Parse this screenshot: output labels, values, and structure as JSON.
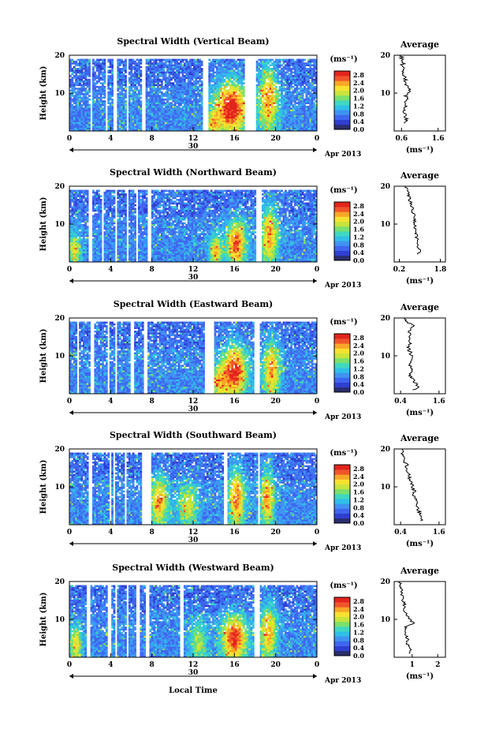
{
  "chart_data": {
    "type": "heatmap",
    "date_label": "30",
    "date_suffix": "Apr 2013",
    "xlabel": "Local Time",
    "x_ticks": [
      "0",
      "4",
      "8",
      "12",
      "16",
      "20",
      "0"
    ],
    "xlim": [
      0,
      24
    ],
    "colorbar": {
      "unit": "(ms⁻¹)",
      "ticks": [
        "0.0",
        "0.4",
        "0.8",
        "1.2",
        "1.6",
        "2.0",
        "2.4",
        "2.8"
      ],
      "range": [
        0.0,
        3.0
      ],
      "colors": [
        "#2a2d6e",
        "#2f3fd2",
        "#3f66f0",
        "#3f93f3",
        "#2fbfe8",
        "#3fd8c0",
        "#7be06a",
        "#c9e43b",
        "#f7e22e",
        "#f8a726",
        "#f2542a",
        "#e3241c"
      ]
    },
    "panels": [
      {
        "title": "Spectral Width (Vertical Beam)",
        "ylabel": "Height (km)",
        "y_ticks": [
          "20",
          "10"
        ],
        "ylim": [
          0,
          20
        ],
        "avg": {
          "title": "Average",
          "x_ticks": [
            "0.6",
            "1.6"
          ],
          "xlim": [
            0.4,
            1.8
          ],
          "xlabel": "(ms⁻¹)",
          "y_ticks": [
            "20",
            "10"
          ],
          "profile": [
            [
              0.7,
              2
            ],
            [
              0.75,
              3
            ],
            [
              0.72,
              4
            ],
            [
              0.66,
              5
            ],
            [
              0.72,
              6
            ],
            [
              0.7,
              7
            ],
            [
              0.74,
              8
            ],
            [
              0.71,
              9
            ],
            [
              0.78,
              10
            ],
            [
              0.82,
              11
            ],
            [
              0.76,
              12
            ],
            [
              0.72,
              13
            ],
            [
              0.68,
              14
            ],
            [
              0.62,
              15
            ],
            [
              0.66,
              16
            ],
            [
              0.6,
              17
            ],
            [
              0.64,
              18
            ],
            [
              0.62,
              19
            ],
            [
              0.58,
              20
            ]
          ]
        }
      },
      {
        "title": "Spectral Width (Northward Beam)",
        "ylabel": "Height (km)",
        "y_ticks": [
          "20",
          "10"
        ],
        "ylim": [
          0,
          20
        ],
        "avg": {
          "title": "Average",
          "x_ticks": [
            "0.2",
            "1.8"
          ],
          "xlim": [
            0.0,
            2.0
          ],
          "xlabel": "(ms⁻¹)",
          "y_ticks": [
            "20",
            "10"
          ],
          "profile": [
            [
              0.95,
              2
            ],
            [
              1.0,
              3
            ],
            [
              0.92,
              4
            ],
            [
              0.88,
              5
            ],
            [
              0.9,
              6
            ],
            [
              0.85,
              7
            ],
            [
              0.88,
              8
            ],
            [
              0.82,
              9
            ],
            [
              0.8,
              10
            ],
            [
              0.78,
              11
            ],
            [
              0.82,
              12
            ],
            [
              0.75,
              13
            ],
            [
              0.7,
              14
            ],
            [
              0.68,
              15
            ],
            [
              0.62,
              16
            ],
            [
              0.58,
              17
            ],
            [
              0.55,
              18
            ],
            [
              0.5,
              19
            ],
            [
              0.45,
              20
            ]
          ]
        }
      },
      {
        "title": "Spectral Width (Eastward Beam)",
        "ylabel": "Height (km)",
        "y_ticks": [
          "20",
          "10"
        ],
        "ylim": [
          0,
          20
        ],
        "avg": {
          "title": "Average",
          "x_ticks": [
            "0.4",
            "1.6"
          ],
          "xlim": [
            0.2,
            1.8
          ],
          "xlabel": "(ms⁻¹)",
          "y_ticks": [
            "20",
            "10"
          ],
          "profile": [
            [
              0.8,
              1
            ],
            [
              0.95,
              2
            ],
            [
              0.85,
              3
            ],
            [
              0.75,
              4
            ],
            [
              0.7,
              5
            ],
            [
              0.78,
              6
            ],
            [
              0.68,
              7
            ],
            [
              0.72,
              8
            ],
            [
              0.8,
              9
            ],
            [
              0.74,
              10
            ],
            [
              0.7,
              11
            ],
            [
              0.64,
              12
            ],
            [
              0.7,
              13
            ],
            [
              0.62,
              14
            ],
            [
              0.68,
              15
            ],
            [
              0.66,
              16
            ],
            [
              0.72,
              17
            ],
            [
              0.8,
              18
            ],
            [
              0.6,
              19
            ],
            [
              0.55,
              20
            ]
          ]
        }
      },
      {
        "title": "Spectral Width (Southward Beam)",
        "ylabel": "Height (km)",
        "y_ticks": [
          "20",
          "10"
        ],
        "ylim": [
          0,
          20
        ],
        "avg": {
          "title": "Average",
          "x_ticks": [
            "0.4",
            "1.6"
          ],
          "xlim": [
            0.2,
            1.8
          ],
          "xlabel": "(ms⁻¹)",
          "y_ticks": [
            "20",
            "10"
          ],
          "profile": [
            [
              1.05,
              1
            ],
            [
              1.1,
              2
            ],
            [
              1.0,
              3
            ],
            [
              0.95,
              4
            ],
            [
              0.9,
              5
            ],
            [
              0.88,
              6
            ],
            [
              0.85,
              7
            ],
            [
              0.8,
              8
            ],
            [
              0.82,
              9
            ],
            [
              0.76,
              10
            ],
            [
              0.74,
              11
            ],
            [
              0.7,
              12
            ],
            [
              0.66,
              13
            ],
            [
              0.62,
              14
            ],
            [
              0.6,
              15
            ],
            [
              0.58,
              16
            ],
            [
              0.5,
              17
            ],
            [
              0.48,
              18
            ],
            [
              0.46,
              19
            ],
            [
              0.44,
              20
            ]
          ]
        }
      },
      {
        "title": "Spectral Width (Westward Beam)",
        "ylabel": "Height (km)",
        "y_ticks": [
          "20",
          "10"
        ],
        "ylim": [
          0,
          20
        ],
        "avg": {
          "title": "Average",
          "x_ticks": [
            "1",
            "2"
          ],
          "xlim": [
            0.3,
            2.3
          ],
          "xlabel": "(ms⁻¹)",
          "y_ticks": [
            "20",
            "10"
          ],
          "profile": [
            [
              0.9,
              1
            ],
            [
              0.95,
              2
            ],
            [
              0.85,
              3
            ],
            [
              0.8,
              4
            ],
            [
              0.82,
              5
            ],
            [
              0.75,
              6
            ],
            [
              0.78,
              7
            ],
            [
              0.72,
              8
            ],
            [
              1.05,
              9
            ],
            [
              0.9,
              10
            ],
            [
              0.8,
              11
            ],
            [
              0.74,
              12
            ],
            [
              0.68,
              13
            ],
            [
              0.7,
              14
            ],
            [
              0.64,
              15
            ],
            [
              0.6,
              16
            ],
            [
              0.62,
              17
            ],
            [
              0.58,
              18
            ],
            [
              0.55,
              19
            ],
            [
              0.5,
              20
            ]
          ]
        }
      }
    ]
  }
}
